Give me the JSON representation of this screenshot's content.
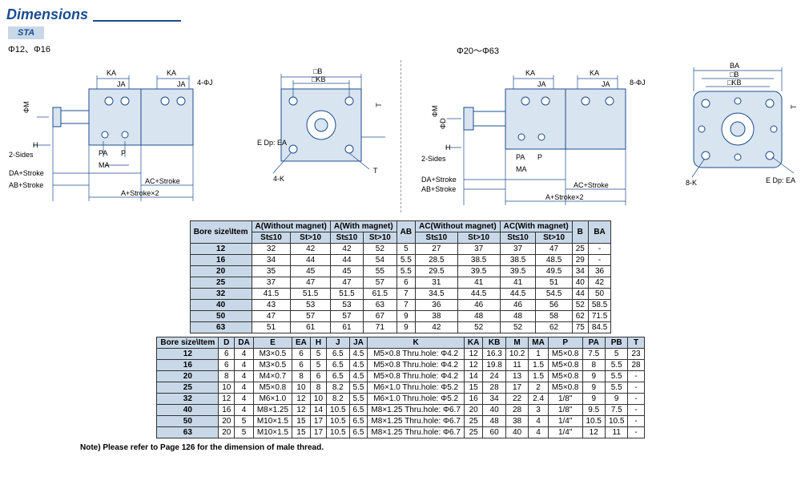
{
  "header": {
    "title": "Dimensions"
  },
  "sta": {
    "label": "STA",
    "boreA": "Φ12、Φ16",
    "boreB": "Φ20～Φ63"
  },
  "diagramLabels": {
    "left": {
      "KA": "KA",
      "JA": "JA",
      "fourJ": "4-ΦJ",
      "H": "H",
      "twoSides": "2-Sides",
      "DA": "DA+Stroke",
      "AB": "AB+Stroke",
      "PA": "PA",
      "P": "P",
      "MA": "MA",
      "AC": "AC+Stroke",
      "A": "A+Stroke×2",
      "phiM": "ΦM",
      "B": "□B",
      "KB": "□KB",
      "EDp": "E Dp: EA",
      "fourK": "4-K",
      "T": "T"
    },
    "right": {
      "KA": "KA",
      "JA": "JA",
      "eightJ": "8-ΦJ",
      "H": "H",
      "twoSides": "2-Sides",
      "DA": "DA+Stroke",
      "AB": "AB+Stroke",
      "PA": "PA",
      "P": "P",
      "MA": "MA",
      "AC": "AC+Stroke",
      "A": "A+Stroke×2",
      "phiM": "ΦM",
      "phiD": "ΦD",
      "BA": "BA",
      "B": "□B",
      "KB": "□KB",
      "EDp": "E Dp: EA",
      "eightK": "8-K",
      "T": "T"
    }
  },
  "table1": {
    "headers": {
      "bore": "Bore size\\Item",
      "aNoMag": "A(Without magnet)",
      "aMag": "A(With magnet)",
      "ab": "AB",
      "acNoMag": "AC(Without magnet)",
      "acMag": "AC(With magnet)",
      "b": "B",
      "ba": "BA",
      "stLe": "St≤10",
      "stGt": "St>10"
    },
    "rows": [
      [
        "12",
        "32",
        "42",
        "42",
        "52",
        "5",
        "27",
        "37",
        "37",
        "47",
        "25",
        "-"
      ],
      [
        "16",
        "34",
        "44",
        "44",
        "54",
        "5.5",
        "28.5",
        "38.5",
        "38.5",
        "48.5",
        "29",
        "-"
      ],
      [
        "20",
        "35",
        "45",
        "45",
        "55",
        "5.5",
        "29.5",
        "39.5",
        "39.5",
        "49.5",
        "34",
        "36"
      ],
      [
        "25",
        "37",
        "47",
        "47",
        "57",
        "6",
        "31",
        "41",
        "41",
        "51",
        "40",
        "42"
      ],
      [
        "32",
        "41.5",
        "51.5",
        "51.5",
        "61.5",
        "7",
        "34.5",
        "44.5",
        "44.5",
        "54.5",
        "44",
        "50"
      ],
      [
        "40",
        "43",
        "53",
        "53",
        "63",
        "7",
        "36",
        "46",
        "46",
        "56",
        "52",
        "58.5"
      ],
      [
        "50",
        "47",
        "57",
        "57",
        "67",
        "9",
        "38",
        "48",
        "48",
        "58",
        "62",
        "71.5"
      ],
      [
        "63",
        "51",
        "61",
        "61",
        "71",
        "9",
        "42",
        "52",
        "52",
        "62",
        "75",
        "84.5"
      ]
    ]
  },
  "table2": {
    "headers": [
      "Bore size\\Item",
      "D",
      "DA",
      "E",
      "EA",
      "H",
      "J",
      "JA",
      "K",
      "KA",
      "KB",
      "M",
      "MA",
      "P",
      "PA",
      "PB",
      "T"
    ],
    "rows": [
      [
        "12",
        "6",
        "4",
        "M3×0.5",
        "6",
        "5",
        "6.5",
        "4.5",
        "M5×0.8 Thru.hole: Φ4.2",
        "12",
        "16.3",
        "10.2",
        "1",
        "M5×0.8",
        "7.5",
        "5",
        "23"
      ],
      [
        "16",
        "6",
        "4",
        "M3×0.5",
        "6",
        "5",
        "6.5",
        "4.5",
        "M5×0.8 Thru.hole: Φ4.2",
        "12",
        "19.8",
        "11",
        "1.5",
        "M5×0.8",
        "8",
        "5.5",
        "28"
      ],
      [
        "20",
        "8",
        "4",
        "M4×0.7",
        "8",
        "6",
        "6.5",
        "4.5",
        "M5×0.8 Thru.hole: Φ4.2",
        "14",
        "24",
        "13",
        "1.5",
        "M5×0.8",
        "9",
        "5.5",
        "-"
      ],
      [
        "25",
        "10",
        "4",
        "M5×0.8",
        "10",
        "8",
        "8.2",
        "5.5",
        "M6×1.0 Thru.hole: Φ5.2",
        "15",
        "28",
        "17",
        "2",
        "M5×0.8",
        "9",
        "5.5",
        "-"
      ],
      [
        "32",
        "12",
        "4",
        "M6×1.0",
        "12",
        "10",
        "8.2",
        "5.5",
        "M6×1.0 Thru.hole: Φ5.2",
        "16",
        "34",
        "22",
        "2.4",
        "1/8\"",
        "9",
        "9",
        "-"
      ],
      [
        "40",
        "16",
        "4",
        "M8×1.25",
        "12",
        "14",
        "10.5",
        "6.5",
        "M8×1.25 Thru.hole: Φ6.7",
        "20",
        "40",
        "28",
        "3",
        "1/8\"",
        "9.5",
        "7.5",
        "-"
      ],
      [
        "50",
        "20",
        "5",
        "M10×1.5",
        "15",
        "17",
        "10.5",
        "6.5",
        "M8×1.25 Thru.hole: Φ6.7",
        "25",
        "48",
        "38",
        "4",
        "1/4\"",
        "10.5",
        "10.5",
        "-"
      ],
      [
        "63",
        "20",
        "5",
        "M10×1.5",
        "15",
        "17",
        "10.5",
        "6.5",
        "M8×1.25 Thru.hole: Φ6.7",
        "25",
        "60",
        "40",
        "4",
        "1/4\"",
        "12",
        "11",
        "-"
      ]
    ]
  },
  "note": "Note) Please refer to Page 126 for the dimension of male thread.",
  "colors": {
    "header": "#1a4d8f",
    "tblHeader": "#c8d8e8",
    "line": "#333"
  }
}
